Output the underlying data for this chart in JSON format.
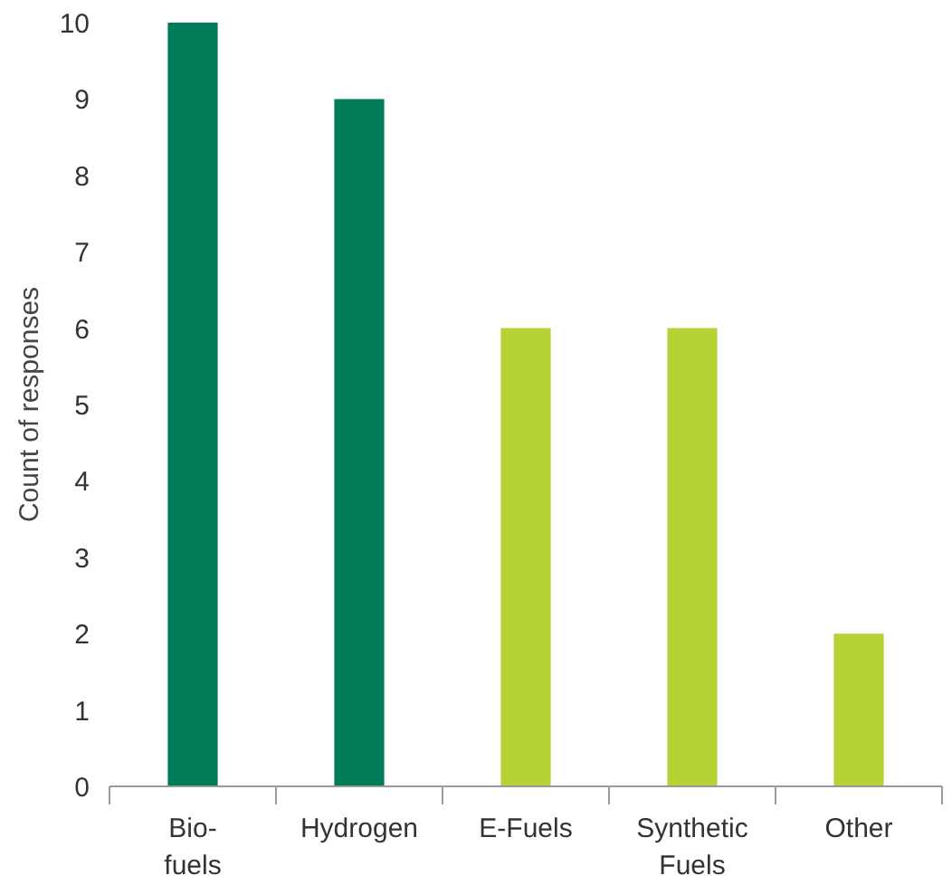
{
  "chart_data": {
    "type": "bar",
    "ylabel": "Count of responses",
    "categories": [
      "Bio-fuels",
      "Hydrogen",
      "E-Fuels",
      "Synthetic Fuels",
      "Other"
    ],
    "values": [
      10,
      9,
      6,
      6,
      2
    ],
    "colors": [
      "#007c58",
      "#007c58",
      "#b5d334",
      "#b5d334",
      "#b5d334"
    ],
    "ylim": [
      0,
      10
    ],
    "yticks": [
      0,
      1,
      2,
      3,
      4,
      5,
      6,
      7,
      8,
      9,
      10
    ],
    "grid": false
  }
}
